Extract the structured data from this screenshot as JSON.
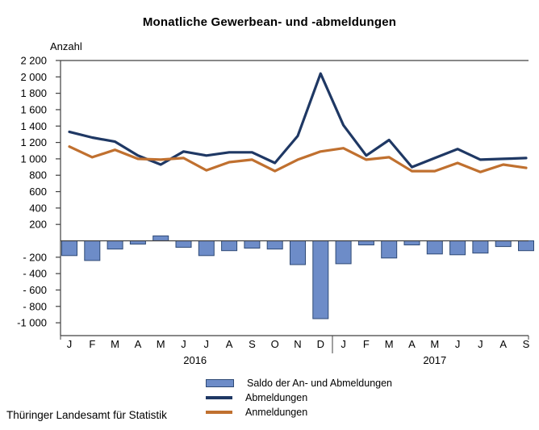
{
  "title": "Monatliche Gewerbean- und -abmeldungen",
  "y_axis_label": "Anzahl",
  "footer": "Thüringer Landesamt für Statistik",
  "colors": {
    "abmeldungen_line": "#1F3864",
    "anmeldungen_line": "#C0702F",
    "saldo_bar_fill": "#6D8CC8",
    "saldo_bar_border": "#2F4A75",
    "axis": "#404040",
    "text": "#000000"
  },
  "chart_data": {
    "type": "combo bar + line",
    "title": "Monatliche Gewerbean- und -abmeldungen",
    "ylabel": "Anzahl",
    "xlabel": "",
    "grid": false,
    "legend_position": "bottom",
    "ylim": [
      -1000,
      2200
    ],
    "categories": [
      "J",
      "F",
      "M",
      "A",
      "M",
      "J",
      "J",
      "A",
      "S",
      "O",
      "N",
      "D",
      "J",
      "F",
      "M",
      "A",
      "M",
      "J",
      "J",
      "A",
      "S"
    ],
    "years": [
      {
        "label": "2016",
        "from": 0,
        "to": 11
      },
      {
        "label": "2017",
        "from": 12,
        "to": 20
      }
    ],
    "y_ticks": [
      {
        "value": 2200,
        "label": "2 200"
      },
      {
        "value": 2000,
        "label": "2 000"
      },
      {
        "value": 1800,
        "label": "1 800"
      },
      {
        "value": 1600,
        "label": "1 600"
      },
      {
        "value": 1400,
        "label": "1 400"
      },
      {
        "value": 1200,
        "label": "1 200"
      },
      {
        "value": 1000,
        "label": "1 000"
      },
      {
        "value": 800,
        "label": "800"
      },
      {
        "value": 600,
        "label": "600"
      },
      {
        "value": 400,
        "label": "400"
      },
      {
        "value": 200,
        "label": "200"
      },
      {
        "value": -200,
        "label": "- 200"
      },
      {
        "value": -400,
        "label": "- 400"
      },
      {
        "value": -600,
        "label": "- 600"
      },
      {
        "value": -800,
        "label": "- 800"
      },
      {
        "value": -1000,
        "label": "-1 000"
      }
    ],
    "series": [
      {
        "name": "Saldo der An- und Abmeldungen",
        "type": "bar",
        "values": [
          -180,
          -240,
          -100,
          -40,
          60,
          -80,
          -180,
          -120,
          -90,
          -100,
          -290,
          -950,
          -280,
          -50,
          -210,
          -50,
          -160,
          -170,
          -150,
          -70,
          -120
        ]
      },
      {
        "name": "Abmeldungen",
        "type": "line",
        "values": [
          1330,
          1260,
          1210,
          1040,
          930,
          1090,
          1040,
          1080,
          1080,
          950,
          1280,
          2040,
          1410,
          1040,
          1230,
          900,
          1010,
          1120,
          990,
          1000,
          1010
        ]
      },
      {
        "name": "Anmeldungen",
        "type": "line",
        "values": [
          1150,
          1020,
          1110,
          1000,
          990,
          1010,
          860,
          960,
          990,
          850,
          990,
          1090,
          1130,
          990,
          1020,
          850,
          850,
          950,
          840,
          930,
          890
        ]
      }
    ]
  }
}
